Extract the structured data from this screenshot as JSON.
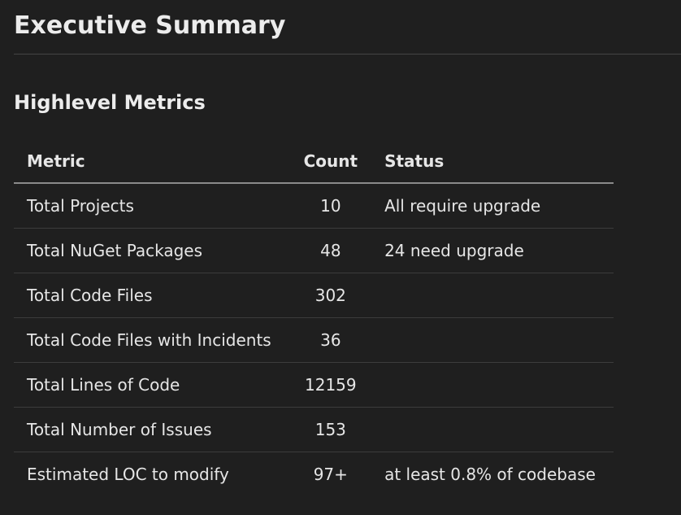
{
  "header": {
    "title": "Executive Summary"
  },
  "section": {
    "title": "Highlevel Metrics"
  },
  "table": {
    "columns": [
      "Metric",
      "Count",
      "Status"
    ],
    "rows": [
      [
        "Total Projects",
        "10",
        "All require upgrade"
      ],
      [
        "Total NuGet Packages",
        "48",
        "24 need upgrade"
      ],
      [
        "Total Code Files",
        "302",
        null
      ],
      [
        "Total Code Files with Incidents",
        "36",
        null
      ],
      [
        "Total Lines of Code",
        "12159",
        null
      ],
      [
        "Total Number of Issues",
        "153",
        null
      ],
      [
        "Estimated LOC to modify",
        "97+",
        "at least 0.8% of codebase"
      ]
    ]
  }
}
